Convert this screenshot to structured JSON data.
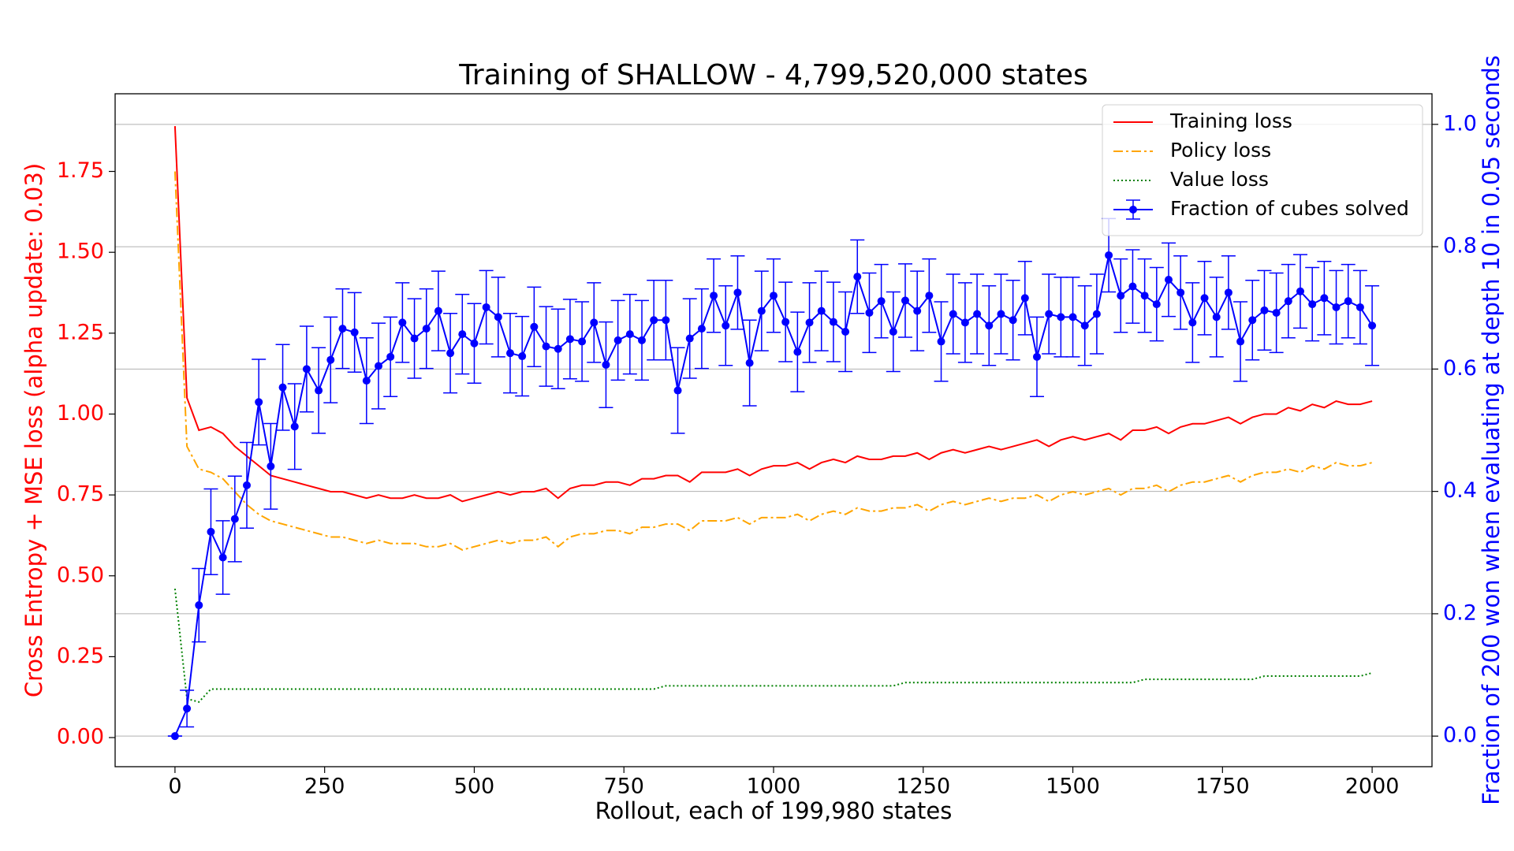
{
  "chart_data": {
    "type": "line",
    "title": "Training of SHALLOW - 4,799,520,000 states",
    "xlabel": "Rollout, each of 199,980 states",
    "ylabel": "Cross Entropy + MSE loss (alpha update: 0.03)",
    "y2label": "Fraction of 200 won when evaluating at depth 10 in 0.05 seconds",
    "ylabel_color": "#ff0000",
    "y2label_color": "#0000ff",
    "grid": "y2",
    "legend": "upper right",
    "xlim": [
      -100,
      2100
    ],
    "ylim": [
      -0.09,
      1.99
    ],
    "y2lim": [
      -0.05,
      1.05
    ],
    "xticks": [
      0,
      250,
      500,
      750,
      1000,
      1250,
      1500,
      1750,
      2000
    ],
    "yticks": [
      {
        "value": 0,
        "label": "0.00"
      },
      {
        "value": 0.25,
        "label": "0.25"
      },
      {
        "value": 0.5,
        "label": "0.50"
      },
      {
        "value": 0.75,
        "label": "0.75"
      },
      {
        "value": 1,
        "label": "1.00"
      },
      {
        "value": 1.25,
        "label": "1.25"
      },
      {
        "value": 1.5,
        "label": "1.50"
      },
      {
        "value": 1.75,
        "label": "1.75"
      }
    ],
    "y2ticks": [
      {
        "value": 0,
        "label": "0.0"
      },
      {
        "value": 0.2,
        "label": "0.2"
      },
      {
        "value": 0.4,
        "label": "0.4"
      },
      {
        "value": 0.6,
        "label": "0.6"
      },
      {
        "value": 0.8,
        "label": "0.8"
      },
      {
        "value": 1,
        "label": "1.0"
      }
    ],
    "x": [
      0,
      20,
      40,
      60,
      80,
      100,
      120,
      140,
      160,
      180,
      200,
      220,
      240,
      260,
      280,
      300,
      320,
      340,
      360,
      380,
      400,
      420,
      440,
      460,
      480,
      500,
      520,
      540,
      560,
      580,
      600,
      620,
      640,
      660,
      680,
      700,
      720,
      740,
      760,
      780,
      800,
      820,
      840,
      860,
      880,
      900,
      920,
      940,
      960,
      980,
      1000,
      1020,
      1040,
      1060,
      1080,
      1100,
      1120,
      1140,
      1160,
      1180,
      1200,
      1220,
      1240,
      1260,
      1280,
      1300,
      1320,
      1340,
      1360,
      1380,
      1400,
      1420,
      1440,
      1460,
      1480,
      1500,
      1520,
      1540,
      1560,
      1580,
      1600,
      1620,
      1640,
      1660,
      1680,
      1700,
      1720,
      1740,
      1760,
      1780,
      1800,
      1820,
      1840,
      1860,
      1880,
      1900,
      1920,
      1940,
      1960,
      1980,
      2000
    ],
    "series": [
      {
        "name": "Training loss",
        "color": "#ff0000",
        "linestyle": "solid",
        "values": [
          1.89,
          1.05,
          0.95,
          0.96,
          0.94,
          0.9,
          0.87,
          0.84,
          0.81,
          0.8,
          0.79,
          0.78,
          0.77,
          0.76,
          0.76,
          0.75,
          0.74,
          0.75,
          0.74,
          0.74,
          0.75,
          0.74,
          0.74,
          0.75,
          0.73,
          0.74,
          0.75,
          0.76,
          0.75,
          0.76,
          0.76,
          0.77,
          0.74,
          0.77,
          0.78,
          0.78,
          0.79,
          0.79,
          0.78,
          0.8,
          0.8,
          0.81,
          0.81,
          0.79,
          0.82,
          0.82,
          0.82,
          0.83,
          0.81,
          0.83,
          0.84,
          0.84,
          0.85,
          0.83,
          0.85,
          0.86,
          0.85,
          0.87,
          0.86,
          0.86,
          0.87,
          0.87,
          0.88,
          0.86,
          0.88,
          0.89,
          0.88,
          0.89,
          0.9,
          0.89,
          0.9,
          0.91,
          0.92,
          0.9,
          0.92,
          0.93,
          0.92,
          0.93,
          0.94,
          0.92,
          0.95,
          0.95,
          0.96,
          0.94,
          0.96,
          0.97,
          0.97,
          0.98,
          0.99,
          0.97,
          0.99,
          1.0,
          1.0,
          1.02,
          1.01,
          1.03,
          1.02,
          1.04,
          1.03,
          1.03,
          1.04
        ]
      },
      {
        "name": "Policy loss",
        "color": "#ffa500",
        "linestyle": "dashdot",
        "values": [
          1.75,
          0.9,
          0.83,
          0.82,
          0.8,
          0.76,
          0.72,
          0.69,
          0.67,
          0.66,
          0.65,
          0.64,
          0.63,
          0.62,
          0.62,
          0.61,
          0.6,
          0.61,
          0.6,
          0.6,
          0.6,
          0.59,
          0.59,
          0.6,
          0.58,
          0.59,
          0.6,
          0.61,
          0.6,
          0.61,
          0.61,
          0.62,
          0.59,
          0.62,
          0.63,
          0.63,
          0.64,
          0.64,
          0.63,
          0.65,
          0.65,
          0.66,
          0.66,
          0.64,
          0.67,
          0.67,
          0.67,
          0.68,
          0.66,
          0.68,
          0.68,
          0.68,
          0.69,
          0.67,
          0.69,
          0.7,
          0.69,
          0.71,
          0.7,
          0.7,
          0.71,
          0.71,
          0.72,
          0.7,
          0.72,
          0.73,
          0.72,
          0.73,
          0.74,
          0.73,
          0.74,
          0.74,
          0.75,
          0.73,
          0.75,
          0.76,
          0.75,
          0.76,
          0.77,
          0.75,
          0.77,
          0.77,
          0.78,
          0.76,
          0.78,
          0.79,
          0.79,
          0.8,
          0.81,
          0.79,
          0.81,
          0.82,
          0.82,
          0.83,
          0.82,
          0.84,
          0.83,
          0.85,
          0.84,
          0.84,
          0.85
        ]
      },
      {
        "name": "Value loss",
        "color": "#008000",
        "linestyle": "dotted",
        "values": [
          0.46,
          0.12,
          0.11,
          0.15,
          0.15,
          0.15,
          0.15,
          0.15,
          0.15,
          0.15,
          0.15,
          0.15,
          0.15,
          0.15,
          0.15,
          0.15,
          0.15,
          0.15,
          0.15,
          0.15,
          0.15,
          0.15,
          0.15,
          0.15,
          0.15,
          0.15,
          0.15,
          0.15,
          0.15,
          0.15,
          0.15,
          0.15,
          0.15,
          0.15,
          0.15,
          0.15,
          0.15,
          0.15,
          0.15,
          0.15,
          0.15,
          0.16,
          0.16,
          0.16,
          0.16,
          0.16,
          0.16,
          0.16,
          0.16,
          0.16,
          0.16,
          0.16,
          0.16,
          0.16,
          0.16,
          0.16,
          0.16,
          0.16,
          0.16,
          0.16,
          0.16,
          0.17,
          0.17,
          0.17,
          0.17,
          0.17,
          0.17,
          0.17,
          0.17,
          0.17,
          0.17,
          0.17,
          0.17,
          0.17,
          0.17,
          0.17,
          0.17,
          0.17,
          0.17,
          0.17,
          0.17,
          0.18,
          0.18,
          0.18,
          0.18,
          0.18,
          0.18,
          0.18,
          0.18,
          0.18,
          0.18,
          0.19,
          0.19,
          0.19,
          0.19,
          0.19,
          0.19,
          0.19,
          0.19,
          0.19,
          0.2
        ]
      },
      {
        "name": "Fraction of cubes solved",
        "color": "#0000ff",
        "linestyle": "solid",
        "axis": "y2",
        "marker": "circle",
        "values": [
          0,
          0.045,
          0.214,
          0.334,
          0.292,
          0.355,
          0.41,
          0.546,
          0.441,
          0.57,
          0.506,
          0.6,
          0.565,
          0.615,
          0.666,
          0.66,
          0.581,
          0.605,
          0.62,
          0.676,
          0.65,
          0.666,
          0.695,
          0.626,
          0.657,
          0.642,
          0.701,
          0.685,
          0.626,
          0.621,
          0.669,
          0.637,
          0.633,
          0.649,
          0.645,
          0.676,
          0.607,
          0.647,
          0.657,
          0.647,
          0.68,
          0.68,
          0.565,
          0.65,
          0.666,
          0.72,
          0.671,
          0.725,
          0.61,
          0.695,
          0.72,
          0.677,
          0.628,
          0.676,
          0.695,
          0.677,
          0.661,
          0.751,
          0.692,
          0.711,
          0.661,
          0.712,
          0.695,
          0.72,
          0.645,
          0.69,
          0.676,
          0.69,
          0.671,
          0.69,
          0.68,
          0.716,
          0.62,
          0.69,
          0.685,
          0.685,
          0.671,
          0.69,
          0.786,
          0.72,
          0.735,
          0.72,
          0.706,
          0.746,
          0.725,
          0.676,
          0.716,
          0.685,
          0.725,
          0.645,
          0.68,
          0.696,
          0.692,
          0.711,
          0.727,
          0.706,
          0.716,
          0.701,
          0.711,
          0.701,
          0.671
        ],
        "errors": [
          0,
          0.03,
          0.06,
          0.07,
          0.06,
          0.07,
          0.07,
          0.07,
          0.07,
          0.07,
          0.07,
          0.07,
          0.07,
          0.07,
          0.065,
          0.065,
          0.07,
          0.07,
          0.065,
          0.065,
          0.065,
          0.065,
          0.065,
          0.065,
          0.065,
          0.065,
          0.06,
          0.065,
          0.065,
          0.065,
          0.065,
          0.065,
          0.065,
          0.065,
          0.065,
          0.065,
          0.07,
          0.065,
          0.065,
          0.065,
          0.065,
          0.065,
          0.07,
          0.065,
          0.065,
          0.06,
          0.065,
          0.06,
          0.07,
          0.065,
          0.06,
          0.065,
          0.065,
          0.065,
          0.065,
          0.065,
          0.065,
          0.06,
          0.065,
          0.06,
          0.065,
          0.06,
          0.065,
          0.06,
          0.065,
          0.065,
          0.065,
          0.065,
          0.065,
          0.065,
          0.065,
          0.06,
          0.065,
          0.065,
          0.065,
          0.065,
          0.065,
          0.065,
          0.06,
          0.06,
          0.06,
          0.06,
          0.06,
          0.06,
          0.06,
          0.065,
          0.06,
          0.065,
          0.06,
          0.065,
          0.065,
          0.065,
          0.065,
          0.06,
          0.06,
          0.06,
          0.06,
          0.06,
          0.06,
          0.06,
          0.065
        ]
      }
    ]
  }
}
